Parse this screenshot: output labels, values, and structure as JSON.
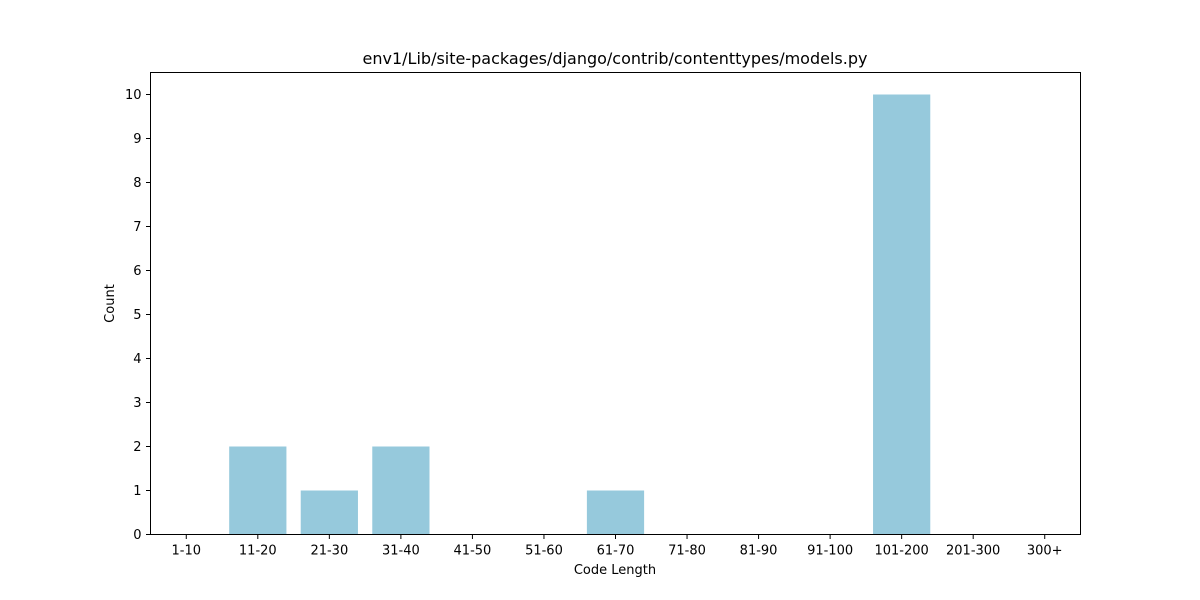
{
  "chart_data": {
    "type": "bar",
    "title": "env1/Lib/site-packages/django/contrib/contenttypes/models.py",
    "xlabel": "Code Length",
    "ylabel": "Count",
    "categories": [
      "1-10",
      "11-20",
      "21-30",
      "31-40",
      "41-50",
      "51-60",
      "61-70",
      "71-80",
      "81-90",
      "91-100",
      "101-200",
      "201-300",
      "300+"
    ],
    "values": [
      0,
      2,
      1,
      2,
      0,
      0,
      1,
      0,
      0,
      0,
      10,
      0,
      0
    ],
    "ylim": [
      0,
      10.5
    ],
    "yticks": [
      0,
      1,
      2,
      3,
      4,
      5,
      6,
      7,
      8,
      9,
      10
    ],
    "bar_color": "#96c9dc",
    "grid": false,
    "legend": "none"
  }
}
